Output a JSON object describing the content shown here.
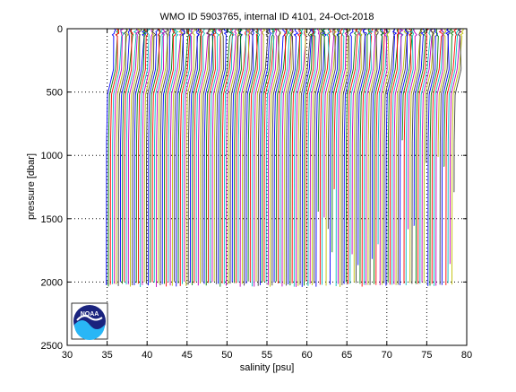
{
  "chart_data": {
    "type": "line",
    "title": "WMO ID 5903765, internal ID 4101, 24-Oct-2018",
    "xlabel": "salinity [psu]",
    "ylabel": "pressure [dbar]",
    "xlim": [
      30,
      80
    ],
    "ylim": [
      0,
      2500
    ],
    "y_reversed": true,
    "xticks": [
      30,
      35,
      40,
      45,
      50,
      55,
      60,
      65,
      70,
      75,
      80
    ],
    "yticks": [
      0,
      500,
      1000,
      1500,
      2000,
      2500
    ],
    "grid": true,
    "profile_count": 175,
    "profile_offset_psu": 0.25,
    "first_profile_deep_salinity": 34.9,
    "typical_max_pressure": 2000,
    "deepest_pressure": 2040,
    "series_colors": [
      "#0000ff",
      "#008000",
      "#ff0000",
      "#00bfbf",
      "#bf00bf",
      "#bfbf00",
      "#404040"
    ],
    "logo": {
      "text": "NOAA",
      "position": "bottom-left"
    }
  }
}
